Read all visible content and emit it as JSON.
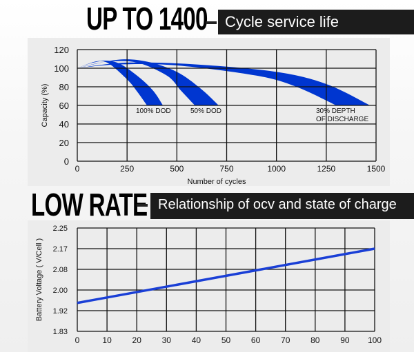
{
  "header1": {
    "big": "UP TO 1400",
    "sub": "Cycle service life"
  },
  "header2": {
    "big": "LOW RATE",
    "sub": "Relationship of ocv and state of charge"
  },
  "chart_data": [
    {
      "type": "area",
      "xlabel": "Number of cycles",
      "ylabel": "Capacity (%)",
      "xlim": [
        0,
        1500
      ],
      "ylim": [
        0,
        120
      ],
      "xticks": [
        0,
        250,
        500,
        750,
        1000,
        1250,
        1500
      ],
      "yticks": [
        0,
        20,
        40,
        60,
        80,
        100,
        120
      ],
      "grid": true,
      "color": "#0036d0",
      "series": [
        {
          "name": "100% DOD",
          "upper": [
            [
              0,
              100
            ],
            [
              100,
              107.5
            ],
            [
              200,
              106
            ],
            [
              300,
              92
            ],
            [
              380,
              76
            ],
            [
              430,
              60
            ]
          ],
          "lower": [
            [
              0,
              100
            ],
            [
              80,
              106
            ],
            [
              150,
              106
            ],
            [
              250,
              88
            ],
            [
              300,
              75
            ],
            [
              350,
              60
            ]
          ]
        },
        {
          "name": "50% DOD",
          "upper": [
            [
              0,
              100
            ],
            [
              200,
              109
            ],
            [
              350,
              107
            ],
            [
              500,
              96
            ],
            [
              620,
              78
            ],
            [
              710,
              60
            ]
          ],
          "lower": [
            [
              0,
              100
            ],
            [
              150,
              107
            ],
            [
              300,
              106
            ],
            [
              450,
              92
            ],
            [
              520,
              76
            ],
            [
              590,
              60
            ]
          ]
        },
        {
          "name": "30% DEPTH OF DISCHARGE",
          "upper": [
            [
              0,
              100
            ],
            [
              250,
              106
            ],
            [
              600,
              104
            ],
            [
              1000,
              96
            ],
            [
              1250,
              83
            ],
            [
              1470,
              60
            ]
          ],
          "lower": [
            [
              0,
              100
            ],
            [
              200,
              104
            ],
            [
              500,
              103
            ],
            [
              900,
              92
            ],
            [
              1100,
              80
            ],
            [
              1300,
              60
            ]
          ]
        }
      ],
      "annotations": [
        "100% DOD",
        "50% DOD",
        "30% DEPTH",
        "OF DISCHARGE"
      ]
    },
    {
      "type": "line",
      "xlabel": "",
      "ylabel": "Battery Voltage ( V/Cell )",
      "xticks": [
        0,
        10,
        20,
        30,
        40,
        50,
        60,
        70,
        80,
        90,
        100
      ],
      "yticks": [
        1.83,
        1.92,
        2.0,
        2.08,
        2.17,
        2.25
      ],
      "grid": true,
      "color": "#1a3fd6",
      "x": [
        0,
        100
      ],
      "y": [
        1.95,
        2.17
      ]
    }
  ]
}
